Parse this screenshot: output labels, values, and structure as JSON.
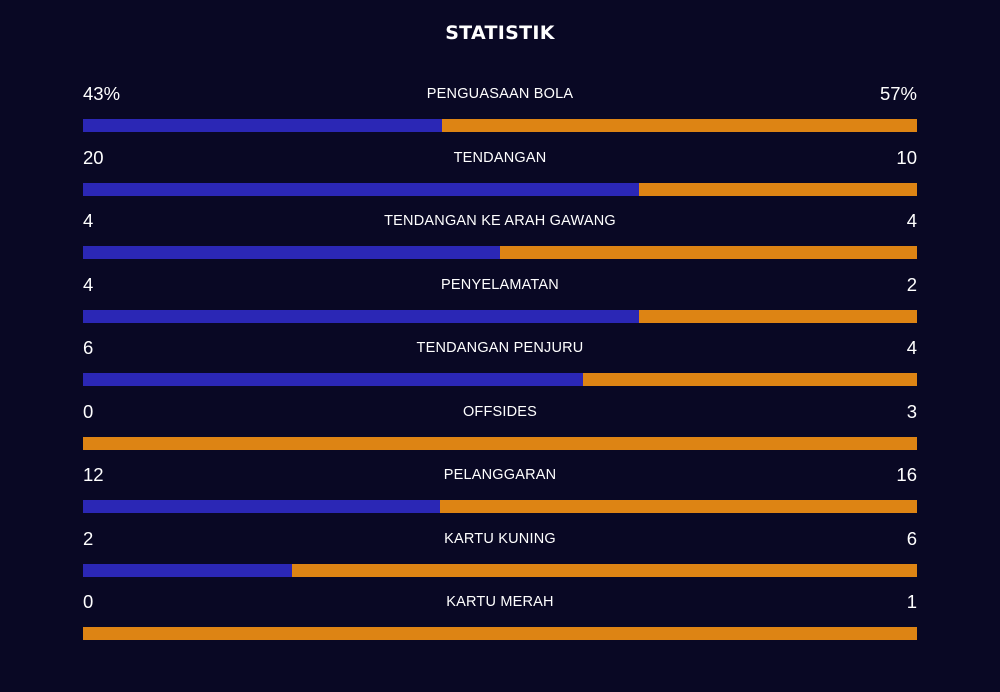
{
  "title": "STATISTIK",
  "colors": {
    "background": "#090824",
    "home_bar": "#2b27b5",
    "away_bar": "#dd8414",
    "text": "#ffffff"
  },
  "stats": [
    {
      "label": "PENGUASAAN BOLA",
      "home": "43%",
      "away": "57%",
      "home_value": 43,
      "away_value": 57
    },
    {
      "label": "TENDANGAN",
      "home": "20",
      "away": "10",
      "home_value": 20,
      "away_value": 10
    },
    {
      "label": "TENDANGAN KE ARAH GAWANG",
      "home": "4",
      "away": "4",
      "home_value": 4,
      "away_value": 4
    },
    {
      "label": "PENYELAMATAN",
      "home": "4",
      "away": "2",
      "home_value": 4,
      "away_value": 2
    },
    {
      "label": "TENDANGAN PENJURU",
      "home": "6",
      "away": "4",
      "home_value": 6,
      "away_value": 4
    },
    {
      "label": "OFFSIDES",
      "home": "0",
      "away": "3",
      "home_value": 0,
      "away_value": 3
    },
    {
      "label": "PELANGGARAN",
      "home": "12",
      "away": "16",
      "home_value": 12,
      "away_value": 16
    },
    {
      "label": "KARTU KUNING",
      "home": "2",
      "away": "6",
      "home_value": 2,
      "away_value": 6
    },
    {
      "label": "KARTU MERAH",
      "home": "0",
      "away": "1",
      "home_value": 0,
      "away_value": 1
    }
  ]
}
